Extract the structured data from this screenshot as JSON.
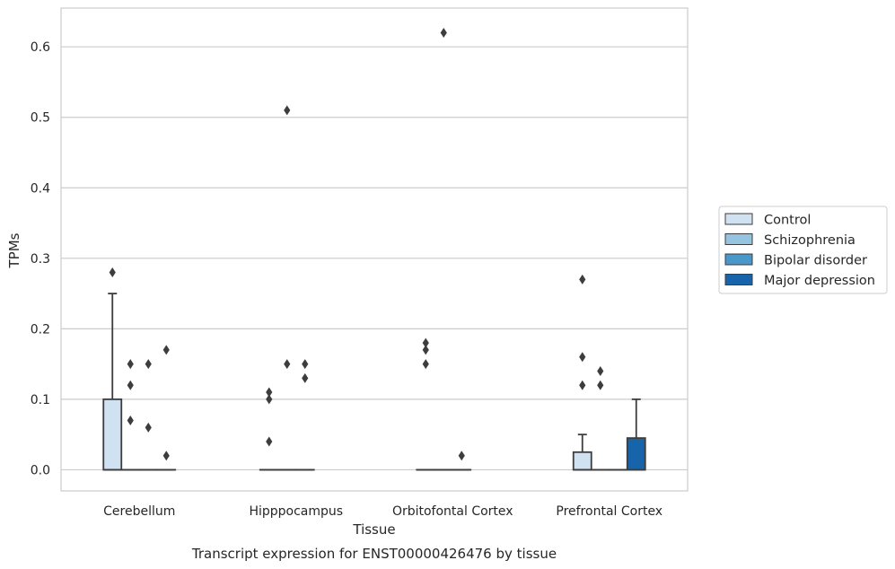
{
  "chart_data": {
    "type": "box",
    "title": "Transcript expression for ENST00000426476 by tissue",
    "xlabel": "Tissue",
    "ylabel": "TPMs",
    "ylim": [
      -0.03,
      0.655
    ],
    "yticks": [
      "0.0",
      "0.1",
      "0.2",
      "0.3",
      "0.4",
      "0.5",
      "0.6"
    ],
    "grid": true,
    "legend_position": "right",
    "categories": [
      "Cerebellum",
      "Hipppocampus",
      "Orbitofontal Cortex",
      "Prefrontal Cortex"
    ],
    "series": [
      {
        "name": "Control",
        "color": "#d0e1f2",
        "boxes": [
          {
            "q1": 0,
            "median": 0,
            "q3": 0.1,
            "whisker_low": 0,
            "whisker_high": 0.25,
            "outliers": [
              0.28
            ]
          },
          {
            "q1": 0,
            "median": 0,
            "q3": 0,
            "whisker_low": 0,
            "whisker_high": 0,
            "outliers": [
              0.04,
              0.1,
              0.11
            ]
          },
          {
            "q1": 0,
            "median": 0,
            "q3": 0,
            "whisker_low": 0,
            "whisker_high": 0,
            "outliers": [
              0.15,
              0.17,
              0.18
            ]
          },
          {
            "q1": 0,
            "median": 0,
            "q3": 0.025,
            "whisker_low": 0,
            "whisker_high": 0.05,
            "outliers": [
              0.12,
              0.16,
              0.27
            ]
          }
        ]
      },
      {
        "name": "Schizophrenia",
        "color": "#94c4df",
        "boxes": [
          {
            "q1": 0,
            "median": 0,
            "q3": 0,
            "whisker_low": 0,
            "whisker_high": 0,
            "outliers": [
              0.07,
              0.12,
              0.15
            ]
          },
          {
            "q1": 0,
            "median": 0,
            "q3": 0,
            "whisker_low": 0,
            "whisker_high": 0,
            "outliers": [
              0.15,
              0.51
            ]
          },
          {
            "q1": 0,
            "median": 0,
            "q3": 0,
            "whisker_low": 0,
            "whisker_high": 0,
            "outliers": [
              0.62
            ]
          },
          {
            "q1": 0,
            "median": 0,
            "q3": 0,
            "whisker_low": 0,
            "whisker_high": 0,
            "outliers": [
              0.12,
              0.14
            ]
          }
        ]
      },
      {
        "name": "Bipolar disorder",
        "color": "#4a98c9",
        "boxes": [
          {
            "q1": 0,
            "median": 0,
            "q3": 0,
            "whisker_low": 0,
            "whisker_high": 0,
            "outliers": [
              0.06,
              0.15
            ]
          },
          {
            "q1": 0,
            "median": 0,
            "q3": 0,
            "whisker_low": 0,
            "whisker_high": 0,
            "outliers": [
              0.13,
              0.15
            ]
          },
          {
            "q1": 0,
            "median": 0,
            "q3": 0,
            "whisker_low": 0,
            "whisker_high": 0,
            "outliers": [
              0.02
            ]
          },
          {
            "q1": 0,
            "median": 0,
            "q3": 0,
            "whisker_low": 0,
            "whisker_high": 0,
            "outliers": []
          }
        ]
      },
      {
        "name": "Major depression",
        "color": "#1764ab",
        "boxes": [
          {
            "q1": 0,
            "median": 0,
            "q3": 0,
            "whisker_low": 0,
            "whisker_high": 0,
            "outliers": [
              0.02,
              0.17
            ]
          },
          null,
          null,
          {
            "q1": 0,
            "median": 0,
            "q3": 0.045,
            "whisker_low": 0,
            "whisker_high": 0.1,
            "outliers": []
          }
        ]
      }
    ]
  }
}
